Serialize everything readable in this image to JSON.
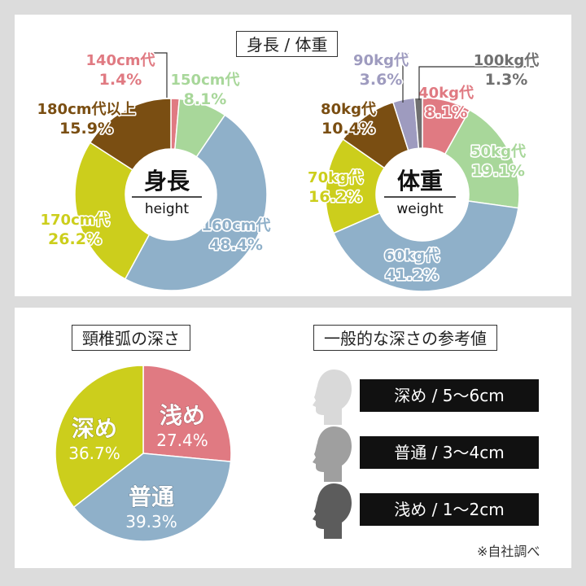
{
  "top_title": "身長 / 体重",
  "height_center": {
    "title": "身長",
    "subtitle": "height"
  },
  "weight_center": {
    "title": "体重",
    "subtitle": "weight"
  },
  "cervical_title": "頸椎弧の深さ",
  "reference_title": "一般的な深さの参考値",
  "reference_rows": [
    {
      "label": "深め / 5〜6cm",
      "head_color": "#d9d9d9"
    },
    {
      "label": "普通 / 3〜4cm",
      "head_color": "#9f9f9f"
    },
    {
      "label": "浅め / 1〜2cm",
      "head_color": "#5c5c5c"
    }
  ],
  "footnote": "※自社調べ",
  "colors": {
    "pink": "#e07a82",
    "green": "#a8d79a",
    "blue": "#8fb0c9",
    "yellow": "#ccce1c",
    "brown": "#7a4e12",
    "lavender": "#9e9bbf",
    "gray": "#707070"
  },
  "chart_data": [
    {
      "type": "pie",
      "title": "身長",
      "subtitle": "height",
      "categories": [
        "140cm代",
        "150cm代",
        "160cm代",
        "170cm代",
        "180cm代以上"
      ],
      "values": [
        1.4,
        8.1,
        48.4,
        26.2,
        15.9
      ],
      "value_labels": [
        "1.4%",
        "8.1%",
        "48.4%",
        "26.2%",
        "15.9%"
      ],
      "colors": [
        "#e07a82",
        "#a8d79a",
        "#8fb0c9",
        "#ccce1c",
        "#7a4e12"
      ]
    },
    {
      "type": "pie",
      "title": "体重",
      "subtitle": "weight",
      "categories": [
        "40kg代",
        "50kg代",
        "60kg代",
        "70kg代",
        "80kg代",
        "90kg代",
        "100kg代"
      ],
      "values": [
        8.1,
        19.1,
        41.2,
        16.2,
        10.4,
        3.6,
        1.3
      ],
      "value_labels": [
        "8.1%",
        "19.1%",
        "41.2%",
        "16.2%",
        "10.4%",
        "3.6%",
        "1.3%"
      ],
      "colors": [
        "#e07a82",
        "#a8d79a",
        "#8fb0c9",
        "#ccce1c",
        "#7a4e12",
        "#9e9bbf",
        "#707070"
      ]
    },
    {
      "type": "pie",
      "title": "頸椎弧の深さ",
      "categories": [
        "浅め",
        "普通",
        "深め"
      ],
      "values": [
        27.4,
        39.3,
        36.7
      ],
      "value_labels": [
        "27.4%",
        "39.3%",
        "36.7%"
      ],
      "colors": [
        "#e07a82",
        "#8fb0c9",
        "#ccce1c"
      ]
    }
  ]
}
